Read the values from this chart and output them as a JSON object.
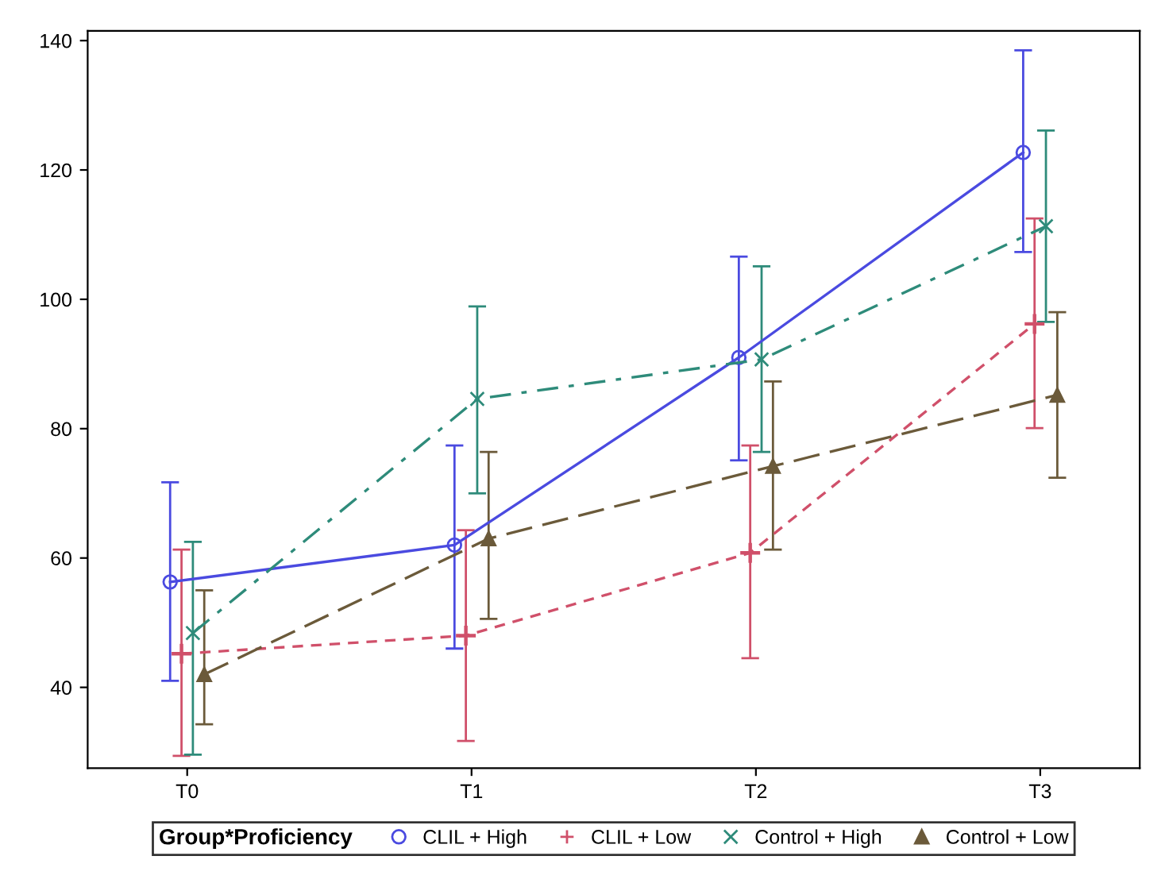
{
  "chart_data": {
    "type": "line",
    "categories": [
      "T0",
      "T1",
      "T2",
      "T3"
    ],
    "ylim": [
      27.5,
      141.5
    ],
    "yticks": [
      40,
      60,
      80,
      100,
      120,
      140
    ],
    "grid": false,
    "legend": "bottom",
    "legend_title": "Group*Proficiency",
    "series": [
      {
        "name": "CLIL + High",
        "color": "#4a4ae0",
        "marker": "circle",
        "line_style": "solid",
        "values": [
          56.3,
          62,
          91,
          122.7
        ],
        "errors": [
          [
            41,
            71.7
          ],
          [
            46,
            77.4
          ],
          [
            75.1,
            106.6
          ],
          [
            107.3,
            138.5
          ]
        ]
      },
      {
        "name": "CLIL + Low",
        "color": "#d0506a",
        "marker": "plus",
        "line_style": "dashed",
        "values": [
          45.2,
          48,
          60.8,
          96.2
        ],
        "errors": [
          [
            29.4,
            61.3
          ],
          [
            31.7,
            64.3
          ],
          [
            44.5,
            77.4
          ],
          [
            80.1,
            112.5
          ]
        ]
      },
      {
        "name": "Control + High",
        "color": "#2e8b7a",
        "marker": "cross",
        "line_style": "dashdot",
        "values": [
          48.4,
          84.6,
          90.7,
          111.3
        ],
        "errors": [
          [
            29.6,
            62.5
          ],
          [
            70,
            98.9
          ],
          [
            76.4,
            105.1
          ],
          [
            96.5,
            126.1
          ]
        ]
      },
      {
        "name": "Control + Low",
        "color": "#6b5a3a",
        "marker": "triangle",
        "line_style": "longdash",
        "values": [
          42,
          63,
          74.2,
          85.2
        ],
        "errors": [
          [
            34.3,
            55
          ],
          [
            50.6,
            76.4
          ],
          [
            61.3,
            87.3
          ],
          [
            72.4,
            98
          ]
        ]
      }
    ]
  }
}
